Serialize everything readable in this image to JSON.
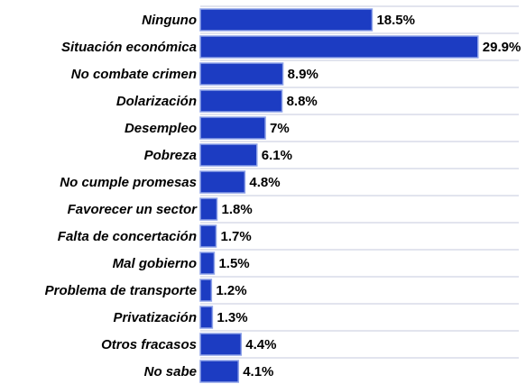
{
  "chart_data": {
    "type": "bar",
    "orientation": "horizontal",
    "categories": [
      "Ninguno",
      "Situación económica",
      "No combate crimen",
      "Dolarización",
      "Desempleo",
      "Pobreza",
      "No cumple promesas",
      "Favorecer un sector",
      "Falta de concertación",
      "Mal gobierno",
      "Problema de transporte",
      "Privatización",
      "Otros fracasos",
      "No sabe"
    ],
    "values": [
      18.5,
      29.9,
      8.9,
      8.8,
      7,
      6.1,
      4.8,
      1.8,
      1.7,
      1.5,
      1.2,
      1.3,
      4.4,
      4.1
    ],
    "value_labels": [
      "18.5%",
      "29.9%",
      "8.9%",
      "8.8%",
      "7%",
      "6.1%",
      "4.8%",
      "1.8%",
      "1.7%",
      "1.5%",
      "1.2%",
      "1.3%",
      "4.4%",
      "4.1%"
    ],
    "color": "#1c3cc2",
    "xlim": [
      0,
      34
    ]
  }
}
